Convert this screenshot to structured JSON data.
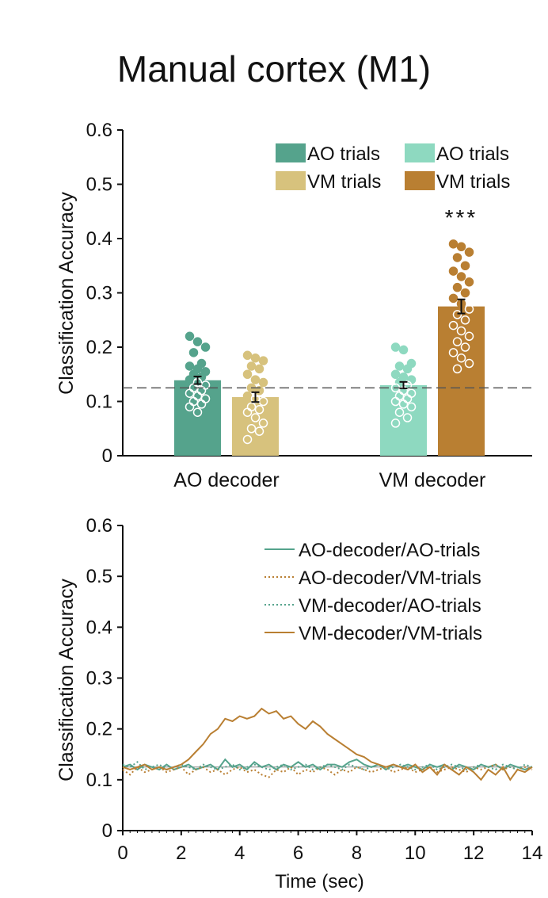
{
  "title": "Manual cortex (M1)",
  "colors": {
    "ao_dec_ao": "#55A38C",
    "ao_dec_vm": "#D7C27D",
    "vm_dec_ao": "#8ED9C0",
    "vm_dec_vm": "#B97F32",
    "axis": "#111111",
    "chance": "#555555"
  },
  "chart_data": [
    {
      "type": "bar",
      "ylabel": "Classification Accuracy",
      "ylim": [
        0,
        0.6
      ],
      "yticks": [
        "0",
        "0.1",
        "0.2",
        "0.3",
        "0.4",
        "0.5",
        "0.6"
      ],
      "chance_level": 0.125,
      "categories": [
        "AO decoder",
        "VM decoder"
      ],
      "legend": [
        "AO trials",
        "AO trials",
        "VM trials",
        "VM trials"
      ],
      "significance": "***",
      "bars": [
        {
          "group": "AO decoder",
          "trials": "AO trials",
          "value": 0.139,
          "sem": 0.007,
          "points": [
            0.22,
            0.21,
            0.2,
            0.19,
            0.17,
            0.165,
            0.16,
            0.155,
            0.15,
            0.145,
            0.14,
            0.135,
            0.13,
            0.125,
            0.12,
            0.115,
            0.11,
            0.105,
            0.1,
            0.095,
            0.09,
            0.08
          ]
        },
        {
          "group": "AO decoder",
          "trials": "VM trials",
          "value": 0.108,
          "sem": 0.009,
          "points": [
            0.185,
            0.18,
            0.175,
            0.165,
            0.16,
            0.15,
            0.14,
            0.135,
            0.125,
            0.12,
            0.11,
            0.105,
            0.1,
            0.09,
            0.085,
            0.08,
            0.07,
            0.06,
            0.05,
            0.045,
            0.03
          ]
        },
        {
          "group": "VM decoder",
          "trials": "AO trials",
          "value": 0.13,
          "sem": 0.006,
          "points": [
            0.2,
            0.195,
            0.17,
            0.165,
            0.16,
            0.15,
            0.145,
            0.14,
            0.135,
            0.13,
            0.125,
            0.12,
            0.115,
            0.11,
            0.105,
            0.1,
            0.095,
            0.09,
            0.08,
            0.07,
            0.06
          ]
        },
        {
          "group": "VM decoder",
          "trials": "VM trials",
          "value": 0.275,
          "sem": 0.013,
          "points": [
            0.39,
            0.385,
            0.375,
            0.365,
            0.35,
            0.34,
            0.33,
            0.32,
            0.31,
            0.3,
            0.29,
            0.28,
            0.27,
            0.26,
            0.25,
            0.24,
            0.23,
            0.22,
            0.21,
            0.2,
            0.19,
            0.18,
            0.17,
            0.16
          ]
        }
      ]
    },
    {
      "type": "line",
      "xlabel": "Time (sec)",
      "ylabel": "Classification Accuracy",
      "xlim": [
        0,
        14
      ],
      "ylim": [
        0,
        0.6
      ],
      "xticks": [
        "0",
        "2",
        "4",
        "6",
        "8",
        "10",
        "12",
        "14"
      ],
      "yticks": [
        "0",
        "0.1",
        "0.2",
        "0.3",
        "0.4",
        "0.5",
        "0.6"
      ],
      "chance_level": 0.125,
      "x": [
        0,
        0.25,
        0.5,
        0.75,
        1,
        1.25,
        1.5,
        1.75,
        2,
        2.25,
        2.5,
        2.75,
        3,
        3.25,
        3.5,
        3.75,
        4,
        4.25,
        4.5,
        4.75,
        5,
        5.25,
        5.5,
        5.75,
        6,
        6.25,
        6.5,
        6.75,
        7,
        7.25,
        7.5,
        7.75,
        8,
        8.25,
        8.5,
        8.75,
        9,
        9.25,
        9.5,
        9.75,
        10,
        10.25,
        10.5,
        10.75,
        11,
        11.25,
        11.5,
        11.75,
        12,
        12.25,
        12.5,
        12.75,
        13,
        13.25,
        13.5,
        13.75,
        14
      ],
      "series": [
        {
          "name": "AO-decoder/AO-trials",
          "style": "solid",
          "colorKey": "ao_dec_ao",
          "values": [
            0.125,
            0.13,
            0.12,
            0.13,
            0.125,
            0.12,
            0.13,
            0.12,
            0.125,
            0.13,
            0.12,
            0.125,
            0.13,
            0.12,
            0.14,
            0.125,
            0.13,
            0.12,
            0.135,
            0.125,
            0.13,
            0.12,
            0.13,
            0.125,
            0.135,
            0.125,
            0.13,
            0.12,
            0.13,
            0.13,
            0.125,
            0.135,
            0.14,
            0.13,
            0.125,
            0.13,
            0.12,
            0.13,
            0.125,
            0.13,
            0.125,
            0.12,
            0.13,
            0.125,
            0.13,
            0.12,
            0.13,
            0.125,
            0.12,
            0.13,
            0.125,
            0.13,
            0.12,
            0.13,
            0.125,
            0.12,
            0.125
          ]
        },
        {
          "name": "AO-decoder/VM-trials",
          "style": "dotted",
          "colorKey": "vm_dec_vm",
          "values": [
            0.12,
            0.11,
            0.125,
            0.115,
            0.12,
            0.125,
            0.115,
            0.12,
            0.125,
            0.11,
            0.12,
            0.125,
            0.115,
            0.12,
            0.11,
            0.12,
            0.125,
            0.115,
            0.12,
            0.11,
            0.105,
            0.12,
            0.115,
            0.125,
            0.11,
            0.12,
            0.115,
            0.125,
            0.12,
            0.11,
            0.12,
            0.115,
            0.125,
            0.12,
            0.115,
            0.12,
            0.125,
            0.115,
            0.12,
            0.125,
            0.115,
            0.12,
            0.125,
            0.115,
            0.12,
            0.125,
            0.12,
            0.115,
            0.125,
            0.12,
            0.125,
            0.13,
            0.12,
            0.125,
            0.12,
            0.125,
            0.12
          ]
        },
        {
          "name": "VM-decoder/AO-trials",
          "style": "dotted",
          "colorKey": "ao_dec_ao",
          "values": [
            0.13,
            0.125,
            0.135,
            0.12,
            0.125,
            0.13,
            0.12,
            0.125,
            0.13,
            0.125,
            0.12,
            0.13,
            0.125,
            0.12,
            0.125,
            0.13,
            0.12,
            0.125,
            0.13,
            0.125,
            0.12,
            0.125,
            0.13,
            0.12,
            0.125,
            0.13,
            0.12,
            0.125,
            0.13,
            0.125,
            0.12,
            0.13,
            0.125,
            0.12,
            0.125,
            0.13,
            0.12,
            0.125,
            0.13,
            0.125,
            0.12,
            0.125,
            0.13,
            0.12,
            0.125,
            0.13,
            0.125,
            0.12,
            0.125,
            0.13,
            0.125,
            0.12,
            0.13,
            0.125,
            0.12,
            0.13,
            0.125
          ]
        },
        {
          "name": "VM-decoder/VM-trials",
          "style": "solid",
          "colorKey": "vm_dec_vm",
          "values": [
            0.125,
            0.12,
            0.125,
            0.13,
            0.12,
            0.125,
            0.12,
            0.125,
            0.13,
            0.14,
            0.155,
            0.17,
            0.19,
            0.2,
            0.22,
            0.215,
            0.225,
            0.22,
            0.225,
            0.24,
            0.23,
            0.235,
            0.22,
            0.225,
            0.21,
            0.2,
            0.215,
            0.205,
            0.19,
            0.18,
            0.17,
            0.16,
            0.15,
            0.145,
            0.135,
            0.13,
            0.125,
            0.13,
            0.125,
            0.12,
            0.13,
            0.115,
            0.125,
            0.11,
            0.13,
            0.12,
            0.11,
            0.125,
            0.115,
            0.1,
            0.12,
            0.11,
            0.125,
            0.1,
            0.12,
            0.115,
            0.125
          ]
        }
      ]
    }
  ]
}
